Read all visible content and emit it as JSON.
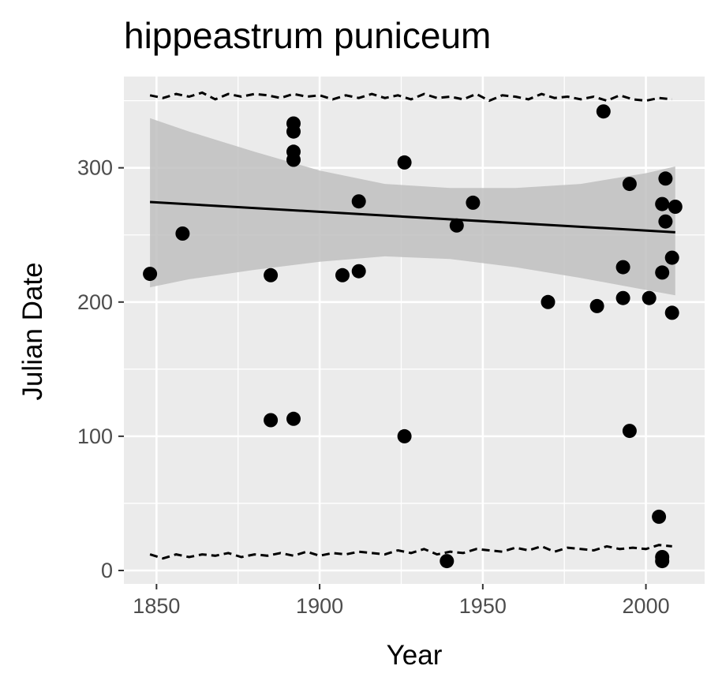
{
  "colors": {
    "panel_background": "#ebebeb",
    "grid_line": "#ffffff",
    "point": "#000000",
    "trend_line": "#000000",
    "confidence_band": "#bfbfbf",
    "bound_line": "#000000",
    "tick_label": "#4d4d4d"
  },
  "chart_data": {
    "type": "scatter",
    "title": "hippeastrum puniceum",
    "xlabel": "Year",
    "ylabel": "Julian Date",
    "xlim": [
      1840,
      2018
    ],
    "ylim": [
      -10,
      368
    ],
    "x_ticks": [
      1850,
      1900,
      1950,
      2000
    ],
    "x_tick_labels": [
      "1850",
      "1900",
      "1950",
      "2000"
    ],
    "y_ticks": [
      0,
      100,
      200,
      300
    ],
    "y_tick_labels": [
      "0",
      "100",
      "200",
      "300"
    ],
    "grid": true,
    "legend": "none",
    "points": [
      {
        "x": 1848,
        "y": 221
      },
      {
        "x": 1858,
        "y": 251
      },
      {
        "x": 1885,
        "y": 220
      },
      {
        "x": 1885,
        "y": 112
      },
      {
        "x": 1892,
        "y": 333
      },
      {
        "x": 1892,
        "y": 327
      },
      {
        "x": 1892,
        "y": 312
      },
      {
        "x": 1892,
        "y": 306
      },
      {
        "x": 1892,
        "y": 113
      },
      {
        "x": 1907,
        "y": 220
      },
      {
        "x": 1912,
        "y": 275
      },
      {
        "x": 1912,
        "y": 223
      },
      {
        "x": 1926,
        "y": 304
      },
      {
        "x": 1926,
        "y": 100
      },
      {
        "x": 1939,
        "y": 7
      },
      {
        "x": 1942,
        "y": 257
      },
      {
        "x": 1947,
        "y": 274
      },
      {
        "x": 1970,
        "y": 200
      },
      {
        "x": 1985,
        "y": 197
      },
      {
        "x": 1987,
        "y": 342
      },
      {
        "x": 1993,
        "y": 226
      },
      {
        "x": 1993,
        "y": 203
      },
      {
        "x": 1995,
        "y": 288
      },
      {
        "x": 1995,
        "y": 104
      },
      {
        "x": 2001,
        "y": 203
      },
      {
        "x": 2004,
        "y": 40
      },
      {
        "x": 2005,
        "y": 273
      },
      {
        "x": 2005,
        "y": 222
      },
      {
        "x": 2005,
        "y": 10
      },
      {
        "x": 2005,
        "y": 7
      },
      {
        "x": 2006,
        "y": 292
      },
      {
        "x": 2006,
        "y": 260
      },
      {
        "x": 2008,
        "y": 233
      },
      {
        "x": 2008,
        "y": 192
      },
      {
        "x": 2009,
        "y": 271
      }
    ],
    "trend_line": {
      "x": [
        1848,
        2009
      ],
      "y": [
        274.5,
        252
      ]
    },
    "confidence_band": {
      "x": [
        1848,
        1860,
        1880,
        1900,
        1920,
        1940,
        1960,
        1980,
        2000,
        2009
      ],
      "lower": [
        211,
        217,
        224,
        230,
        234,
        232,
        226,
        218,
        209,
        205
      ],
      "upper": [
        337,
        327,
        312,
        298,
        288,
        285,
        285,
        288,
        296,
        301
      ]
    },
    "upper_bound_line": {
      "x": [
        1848,
        1852,
        1856,
        1860,
        1864,
        1868,
        1872,
        1876,
        1880,
        1884,
        1888,
        1892,
        1896,
        1900,
        1904,
        1908,
        1912,
        1916,
        1920,
        1924,
        1928,
        1932,
        1936,
        1940,
        1944,
        1948,
        1952,
        1956,
        1960,
        1964,
        1968,
        1972,
        1976,
        1980,
        1984,
        1988,
        1992,
        1996,
        2000,
        2004,
        2008
      ],
      "y": [
        354,
        352,
        355,
        353,
        356,
        351,
        355,
        353,
        355,
        354,
        352,
        355,
        353,
        354,
        351,
        354,
        352,
        355,
        352,
        354,
        351,
        355,
        352,
        353,
        351,
        355,
        350,
        354,
        353,
        351,
        355,
        352,
        353,
        351,
        353,
        350,
        354,
        351,
        350,
        352,
        351
      ]
    },
    "lower_bound_line": {
      "x": [
        1848,
        1852,
        1856,
        1860,
        1864,
        1868,
        1872,
        1876,
        1880,
        1884,
        1888,
        1892,
        1896,
        1900,
        1904,
        1908,
        1912,
        1916,
        1920,
        1924,
        1928,
        1932,
        1936,
        1940,
        1944,
        1948,
        1952,
        1956,
        1960,
        1964,
        1968,
        1972,
        1976,
        1980,
        1984,
        1988,
        1992,
        1996,
        2000,
        2004,
        2008
      ],
      "y": [
        12,
        9,
        12,
        10,
        12,
        11,
        13,
        10,
        12,
        11,
        13,
        11,
        14,
        11,
        13,
        12,
        14,
        13,
        12,
        15,
        13,
        16,
        12,
        14,
        13,
        16,
        15,
        14,
        17,
        15,
        18,
        14,
        17,
        16,
        15,
        18,
        16,
        17,
        16,
        19,
        18
      ]
    }
  }
}
